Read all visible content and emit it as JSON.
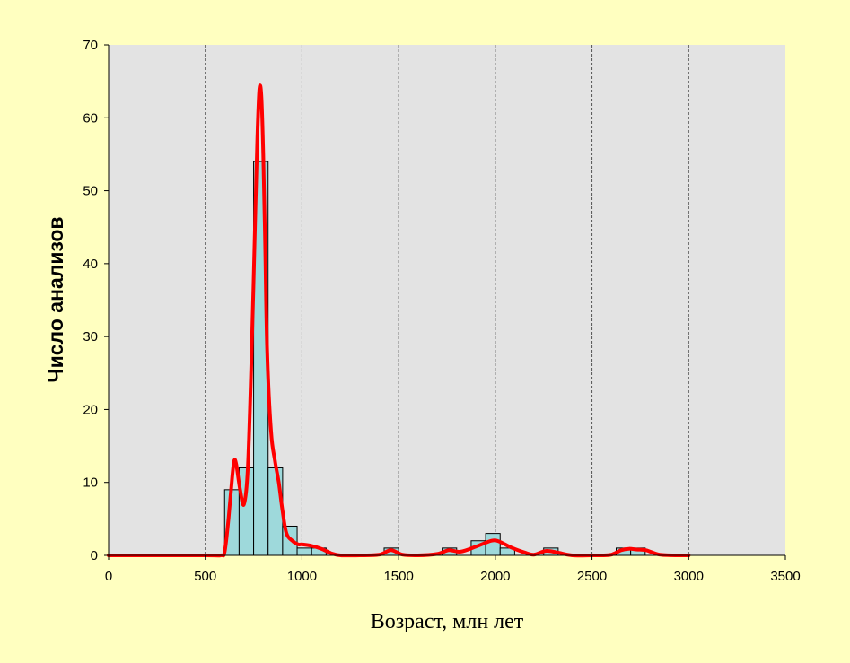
{
  "colors": {
    "background": "#ffffc0",
    "plot_area": "#e3e3e3",
    "bar_fill": "#9ed9db",
    "bar_stroke": "#000000",
    "curve": "#ff0000",
    "gridline": "#555555"
  },
  "chart_data": {
    "type": "bar",
    "xlabel": "Возраст, млн лет",
    "ylabel": "Число анализов",
    "xlim": [
      0,
      3500
    ],
    "ylim": [
      0,
      70
    ],
    "x_ticks": [
      "0",
      "500",
      "1000",
      "1500",
      "2000",
      "2500",
      "3000",
      "3500"
    ],
    "y_ticks": [
      "0",
      "10",
      "20",
      "30",
      "40",
      "50",
      "60",
      "70"
    ],
    "grid": "vertical dashed lines at 500-unit intervals",
    "legend": "none",
    "histogram": {
      "bin_width": 75,
      "bins": [
        {
          "start": 600,
          "end": 675,
          "count": 9
        },
        {
          "start": 675,
          "end": 750,
          "count": 12
        },
        {
          "start": 750,
          "end": 825,
          "count": 54
        },
        {
          "start": 825,
          "end": 900,
          "count": 12
        },
        {
          "start": 900,
          "end": 975,
          "count": 4
        },
        {
          "start": 975,
          "end": 1050,
          "count": 1
        },
        {
          "start": 1050,
          "end": 1125,
          "count": 1
        },
        {
          "start": 1425,
          "end": 1500,
          "count": 1
        },
        {
          "start": 1725,
          "end": 1800,
          "count": 1
        },
        {
          "start": 1875,
          "end": 1950,
          "count": 2
        },
        {
          "start": 1950,
          "end": 2025,
          "count": 3
        },
        {
          "start": 2025,
          "end": 2100,
          "count": 1
        },
        {
          "start": 2250,
          "end": 2325,
          "count": 1
        },
        {
          "start": 2625,
          "end": 2700,
          "count": 1
        },
        {
          "start": 2700,
          "end": 2775,
          "count": 1
        }
      ]
    },
    "density_curve": {
      "x": [
        0,
        500,
        580,
        600,
        620,
        640,
        650,
        660,
        680,
        700,
        720,
        740,
        760,
        770,
        780,
        790,
        800,
        810,
        820,
        840,
        860,
        880,
        900,
        920,
        950,
        980,
        1000,
        1050,
        1100,
        1150,
        1200,
        1300,
        1400,
        1460,
        1520,
        1600,
        1700,
        1760,
        1820,
        1900,
        1980,
        2020,
        2080,
        2150,
        2200,
        2260,
        2320,
        2400,
        2500,
        2550,
        2600,
        2650,
        2690,
        2730,
        2780,
        2850,
        2950,
        3000
      ],
      "y": [
        0,
        0,
        0,
        0.5,
        5,
        11,
        13,
        12.5,
        9,
        7,
        12,
        28,
        48,
        58,
        64,
        63,
        55,
        42,
        28,
        17,
        13,
        10,
        6,
        3,
        2,
        1.5,
        1.5,
        1.3,
        0.9,
        0.3,
        0,
        0,
        0.1,
        0.7,
        0.1,
        0,
        0.2,
        0.7,
        0.5,
        1.2,
        2,
        1.9,
        1.1,
        0.4,
        0.1,
        0.6,
        0.4,
        0,
        0,
        0,
        0.1,
        0.7,
        0.9,
        0.8,
        0.7,
        0.1,
        0,
        0
      ]
    }
  }
}
